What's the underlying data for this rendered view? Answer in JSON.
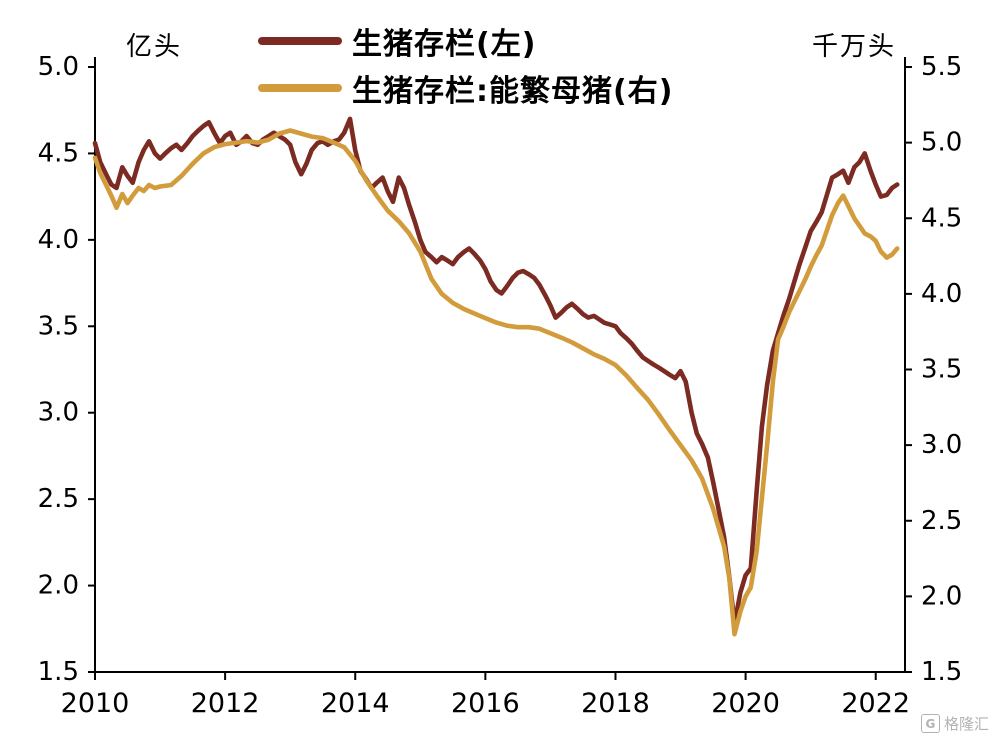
{
  "chart_data": {
    "type": "line",
    "title": "",
    "grid": false,
    "legend_position": "top",
    "left_axis": {
      "unit": "亿头",
      "range": [
        1.5,
        5.0
      ],
      "ticks": [
        "1.5",
        "2.0",
        "2.5",
        "3.0",
        "3.5",
        "4.0",
        "4.5",
        "5.0"
      ]
    },
    "right_axis": {
      "unit": "千万头",
      "range": [
        1.5,
        5.5
      ],
      "ticks": [
        "1.5",
        "2.0",
        "2.5",
        "3.0",
        "3.5",
        "4.0",
        "4.5",
        "5.0",
        "5.5"
      ]
    },
    "x_axis": {
      "range": [
        2010,
        2022.45
      ],
      "ticks": [
        "2010",
        "2012",
        "2014",
        "2016",
        "2018",
        "2020",
        "2022"
      ]
    },
    "series": [
      {
        "name": "生猪存栏(左)",
        "axis": "left",
        "color": "#7C2B22",
        "points": [
          [
            2010.0,
            4.56
          ],
          [
            2010.08,
            4.45
          ],
          [
            2010.17,
            4.38
          ],
          [
            2010.25,
            4.32
          ],
          [
            2010.33,
            4.3
          ],
          [
            2010.42,
            4.42
          ],
          [
            2010.5,
            4.37
          ],
          [
            2010.58,
            4.33
          ],
          [
            2010.67,
            4.45
          ],
          [
            2010.75,
            4.52
          ],
          [
            2010.83,
            4.57
          ],
          [
            2010.92,
            4.5
          ],
          [
            2011.0,
            4.47
          ],
          [
            2011.08,
            4.5
          ],
          [
            2011.17,
            4.53
          ],
          [
            2011.25,
            4.55
          ],
          [
            2011.33,
            4.52
          ],
          [
            2011.42,
            4.56
          ],
          [
            2011.5,
            4.6
          ],
          [
            2011.58,
            4.63
          ],
          [
            2011.67,
            4.66
          ],
          [
            2011.75,
            4.68
          ],
          [
            2011.83,
            4.62
          ],
          [
            2011.92,
            4.56
          ],
          [
            2012.0,
            4.6
          ],
          [
            2012.08,
            4.62
          ],
          [
            2012.17,
            4.55
          ],
          [
            2012.25,
            4.57
          ],
          [
            2012.33,
            4.6
          ],
          [
            2012.42,
            4.56
          ],
          [
            2012.5,
            4.55
          ],
          [
            2012.58,
            4.58
          ],
          [
            2012.67,
            4.6
          ],
          [
            2012.75,
            4.62
          ],
          [
            2012.83,
            4.6
          ],
          [
            2012.92,
            4.58
          ],
          [
            2013.0,
            4.55
          ],
          [
            2013.08,
            4.45
          ],
          [
            2013.17,
            4.38
          ],
          [
            2013.25,
            4.44
          ],
          [
            2013.33,
            4.52
          ],
          [
            2013.42,
            4.56
          ],
          [
            2013.5,
            4.57
          ],
          [
            2013.58,
            4.55
          ],
          [
            2013.67,
            4.57
          ],
          [
            2013.75,
            4.58
          ],
          [
            2013.83,
            4.62
          ],
          [
            2013.92,
            4.7
          ],
          [
            2014.0,
            4.52
          ],
          [
            2014.08,
            4.4
          ],
          [
            2014.17,
            4.35
          ],
          [
            2014.25,
            4.3
          ],
          [
            2014.33,
            4.33
          ],
          [
            2014.42,
            4.36
          ],
          [
            2014.5,
            4.28
          ],
          [
            2014.58,
            4.22
          ],
          [
            2014.67,
            4.36
          ],
          [
            2014.75,
            4.3
          ],
          [
            2014.83,
            4.2
          ],
          [
            2014.92,
            4.1
          ],
          [
            2015.0,
            4.0
          ],
          [
            2015.08,
            3.93
          ],
          [
            2015.17,
            3.9
          ],
          [
            2015.25,
            3.87
          ],
          [
            2015.33,
            3.9
          ],
          [
            2015.42,
            3.88
          ],
          [
            2015.5,
            3.86
          ],
          [
            2015.58,
            3.9
          ],
          [
            2015.67,
            3.93
          ],
          [
            2015.75,
            3.95
          ],
          [
            2015.83,
            3.92
          ],
          [
            2015.92,
            3.88
          ],
          [
            2016.0,
            3.83
          ],
          [
            2016.08,
            3.76
          ],
          [
            2016.17,
            3.71
          ],
          [
            2016.25,
            3.69
          ],
          [
            2016.33,
            3.73
          ],
          [
            2016.42,
            3.78
          ],
          [
            2016.5,
            3.81
          ],
          [
            2016.58,
            3.82
          ],
          [
            2016.67,
            3.8
          ],
          [
            2016.75,
            3.78
          ],
          [
            2016.83,
            3.74
          ],
          [
            2016.92,
            3.68
          ],
          [
            2017.0,
            3.62
          ],
          [
            2017.08,
            3.55
          ],
          [
            2017.17,
            3.58
          ],
          [
            2017.25,
            3.61
          ],
          [
            2017.33,
            3.63
          ],
          [
            2017.42,
            3.6
          ],
          [
            2017.5,
            3.57
          ],
          [
            2017.58,
            3.55
          ],
          [
            2017.67,
            3.56
          ],
          [
            2017.75,
            3.54
          ],
          [
            2017.83,
            3.52
          ],
          [
            2017.92,
            3.51
          ],
          [
            2018.0,
            3.5
          ],
          [
            2018.08,
            3.46
          ],
          [
            2018.17,
            3.43
          ],
          [
            2018.25,
            3.4
          ],
          [
            2018.33,
            3.36
          ],
          [
            2018.42,
            3.32
          ],
          [
            2018.5,
            3.3
          ],
          [
            2018.58,
            3.28
          ],
          [
            2018.67,
            3.26
          ],
          [
            2018.75,
            3.24
          ],
          [
            2018.83,
            3.22
          ],
          [
            2018.92,
            3.2
          ],
          [
            2019.0,
            3.24
          ],
          [
            2019.08,
            3.18
          ],
          [
            2019.17,
            3.0
          ],
          [
            2019.25,
            2.88
          ],
          [
            2019.33,
            2.82
          ],
          [
            2019.42,
            2.74
          ],
          [
            2019.5,
            2.6
          ],
          [
            2019.58,
            2.45
          ],
          [
            2019.67,
            2.28
          ],
          [
            2019.75,
            2.05
          ],
          [
            2019.83,
            1.78
          ],
          [
            2019.92,
            1.96
          ],
          [
            2020.0,
            2.06
          ],
          [
            2020.08,
            2.1
          ],
          [
            2020.17,
            2.55
          ],
          [
            2020.25,
            2.92
          ],
          [
            2020.33,
            3.16
          ],
          [
            2020.42,
            3.36
          ],
          [
            2020.5,
            3.46
          ],
          [
            2020.58,
            3.56
          ],
          [
            2020.67,
            3.66
          ],
          [
            2020.75,
            3.76
          ],
          [
            2020.83,
            3.86
          ],
          [
            2020.92,
            3.96
          ],
          [
            2021.0,
            4.05
          ],
          [
            2021.08,
            4.1
          ],
          [
            2021.17,
            4.16
          ],
          [
            2021.25,
            4.26
          ],
          [
            2021.33,
            4.36
          ],
          [
            2021.42,
            4.38
          ],
          [
            2021.5,
            4.4
          ],
          [
            2021.58,
            4.33
          ],
          [
            2021.67,
            4.42
          ],
          [
            2021.75,
            4.45
          ],
          [
            2021.83,
            4.5
          ],
          [
            2021.92,
            4.4
          ],
          [
            2022.0,
            4.32
          ],
          [
            2022.08,
            4.25
          ],
          [
            2022.17,
            4.26
          ],
          [
            2022.25,
            4.3
          ],
          [
            2022.33,
            4.32
          ]
        ]
      },
      {
        "name": "生猪存栏:能繁母猪(右)",
        "axis": "right",
        "color": "#D29C3C",
        "points": [
          [
            2010.0,
            4.9
          ],
          [
            2010.08,
            4.8
          ],
          [
            2010.17,
            4.72
          ],
          [
            2010.25,
            4.65
          ],
          [
            2010.33,
            4.57
          ],
          [
            2010.42,
            4.66
          ],
          [
            2010.5,
            4.6
          ],
          [
            2010.58,
            4.65
          ],
          [
            2010.67,
            4.7
          ],
          [
            2010.75,
            4.68
          ],
          [
            2010.83,
            4.72
          ],
          [
            2010.92,
            4.7
          ],
          [
            2011.0,
            4.71
          ],
          [
            2011.17,
            4.72
          ],
          [
            2011.33,
            4.78
          ],
          [
            2011.5,
            4.86
          ],
          [
            2011.67,
            4.93
          ],
          [
            2011.83,
            4.97
          ],
          [
            2012.0,
            4.99
          ],
          [
            2012.17,
            5.0
          ],
          [
            2012.33,
            5.01
          ],
          [
            2012.5,
            5.0
          ],
          [
            2012.67,
            5.02
          ],
          [
            2012.83,
            5.06
          ],
          [
            2013.0,
            5.08
          ],
          [
            2013.17,
            5.06
          ],
          [
            2013.33,
            5.04
          ],
          [
            2013.5,
            5.03
          ],
          [
            2013.67,
            5.0
          ],
          [
            2013.83,
            4.97
          ],
          [
            2014.0,
            4.88
          ],
          [
            2014.17,
            4.75
          ],
          [
            2014.33,
            4.65
          ],
          [
            2014.5,
            4.55
          ],
          [
            2014.67,
            4.48
          ],
          [
            2014.83,
            4.4
          ],
          [
            2015.0,
            4.28
          ],
          [
            2015.17,
            4.1
          ],
          [
            2015.33,
            4.0
          ],
          [
            2015.5,
            3.94
          ],
          [
            2015.67,
            3.9
          ],
          [
            2015.83,
            3.87
          ],
          [
            2016.0,
            3.84
          ],
          [
            2016.17,
            3.81
          ],
          [
            2016.33,
            3.79
          ],
          [
            2016.5,
            3.78
          ],
          [
            2016.67,
            3.78
          ],
          [
            2016.83,
            3.77
          ],
          [
            2017.0,
            3.74
          ],
          [
            2017.17,
            3.71
          ],
          [
            2017.33,
            3.68
          ],
          [
            2017.5,
            3.64
          ],
          [
            2017.67,
            3.6
          ],
          [
            2017.83,
            3.57
          ],
          [
            2018.0,
            3.53
          ],
          [
            2018.17,
            3.46
          ],
          [
            2018.33,
            3.38
          ],
          [
            2018.5,
            3.3
          ],
          [
            2018.67,
            3.2
          ],
          [
            2018.83,
            3.1
          ],
          [
            2019.0,
            3.0
          ],
          [
            2019.17,
            2.9
          ],
          [
            2019.33,
            2.78
          ],
          [
            2019.5,
            2.58
          ],
          [
            2019.67,
            2.33
          ],
          [
            2019.75,
            2.12
          ],
          [
            2019.83,
            1.75
          ],
          [
            2019.92,
            1.9
          ],
          [
            2020.0,
            2.0
          ],
          [
            2020.08,
            2.06
          ],
          [
            2020.17,
            2.3
          ],
          [
            2020.25,
            2.65
          ],
          [
            2020.33,
            3.0
          ],
          [
            2020.42,
            3.42
          ],
          [
            2020.5,
            3.7
          ],
          [
            2020.58,
            3.78
          ],
          [
            2020.67,
            3.88
          ],
          [
            2020.75,
            3.95
          ],
          [
            2020.83,
            4.02
          ],
          [
            2020.92,
            4.1
          ],
          [
            2021.0,
            4.18
          ],
          [
            2021.08,
            4.25
          ],
          [
            2021.17,
            4.32
          ],
          [
            2021.25,
            4.42
          ],
          [
            2021.33,
            4.52
          ],
          [
            2021.42,
            4.6
          ],
          [
            2021.5,
            4.65
          ],
          [
            2021.58,
            4.58
          ],
          [
            2021.67,
            4.5
          ],
          [
            2021.75,
            4.45
          ],
          [
            2021.83,
            4.4
          ],
          [
            2021.92,
            4.38
          ],
          [
            2022.0,
            4.35
          ],
          [
            2022.08,
            4.28
          ],
          [
            2022.17,
            4.24
          ],
          [
            2022.25,
            4.26
          ],
          [
            2022.33,
            4.3
          ]
        ]
      }
    ]
  },
  "watermark": {
    "logo": "G",
    "text": "格隆汇"
  }
}
